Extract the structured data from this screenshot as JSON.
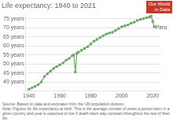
{
  "chart_data": {
    "type": "line",
    "title": "Life expectancy: 1940 to 2021",
    "x": [
      1940,
      1942,
      1944,
      1946,
      1948,
      1950,
      1952,
      1954,
      1956,
      1958,
      1960,
      1962,
      1964,
      1966,
      1968,
      1969,
      1970,
      1971,
      1972,
      1974,
      1976,
      1978,
      1980,
      1982,
      1984,
      1986,
      1988,
      1990,
      1992,
      1994,
      1996,
      1998,
      2000,
      2002,
      2004,
      2006,
      2008,
      2010,
      2012,
      2014,
      2016,
      2018,
      2019,
      2020,
      2021
    ],
    "values": [
      36.0,
      36.8,
      37.5,
      38.5,
      40.0,
      43.0,
      44.5,
      46.0,
      47.5,
      48.5,
      49.5,
      50.5,
      52.0,
      53.0,
      54.5,
      55.0,
      45.5,
      55.8,
      56.5,
      57.5,
      58.5,
      59.5,
      61.0,
      62.5,
      63.5,
      64.5,
      65.5,
      66.5,
      67.0,
      67.5,
      68.5,
      69.5,
      70.5,
      71.0,
      71.5,
      72.5,
      73.0,
      74.0,
      74.5,
      75.0,
      75.5,
      76.0,
      76.5,
      73.5,
      70.5
    ],
    "color": "#6aaa64",
    "marker": "circle",
    "xlim": [
      1938,
      2025
    ],
    "xticks": [
      1940,
      1960,
      1980,
      2000,
      2020
    ],
    "ylim": [
      35,
      78
    ],
    "yticks": [
      {
        "value": 40,
        "label": "40 years"
      },
      {
        "value": 45,
        "label": "45 years"
      },
      {
        "value": 50,
        "label": "50 years"
      },
      {
        "value": 55,
        "label": "55 years"
      },
      {
        "value": 60,
        "label": "60 years"
      },
      {
        "value": 65,
        "label": "65 years"
      },
      {
        "value": 70,
        "label": "70 years"
      },
      {
        "value": 75,
        "label": "75 years"
      }
    ],
    "grid": "y",
    "annotations": [
      {
        "text": "Peru",
        "x": 2021.3,
        "y": 70.2
      }
    ],
    "logo": {
      "text": "Our World\nin Data",
      "color": "#c0392b"
    },
    "footer": "Source: Based on data and estimates from the UN population division.\nNote: Figures for life expectancy at birth. This is the average number of years a person born in a given country and year is expected to live if death rates stay constant throughout the rest of their life."
  }
}
